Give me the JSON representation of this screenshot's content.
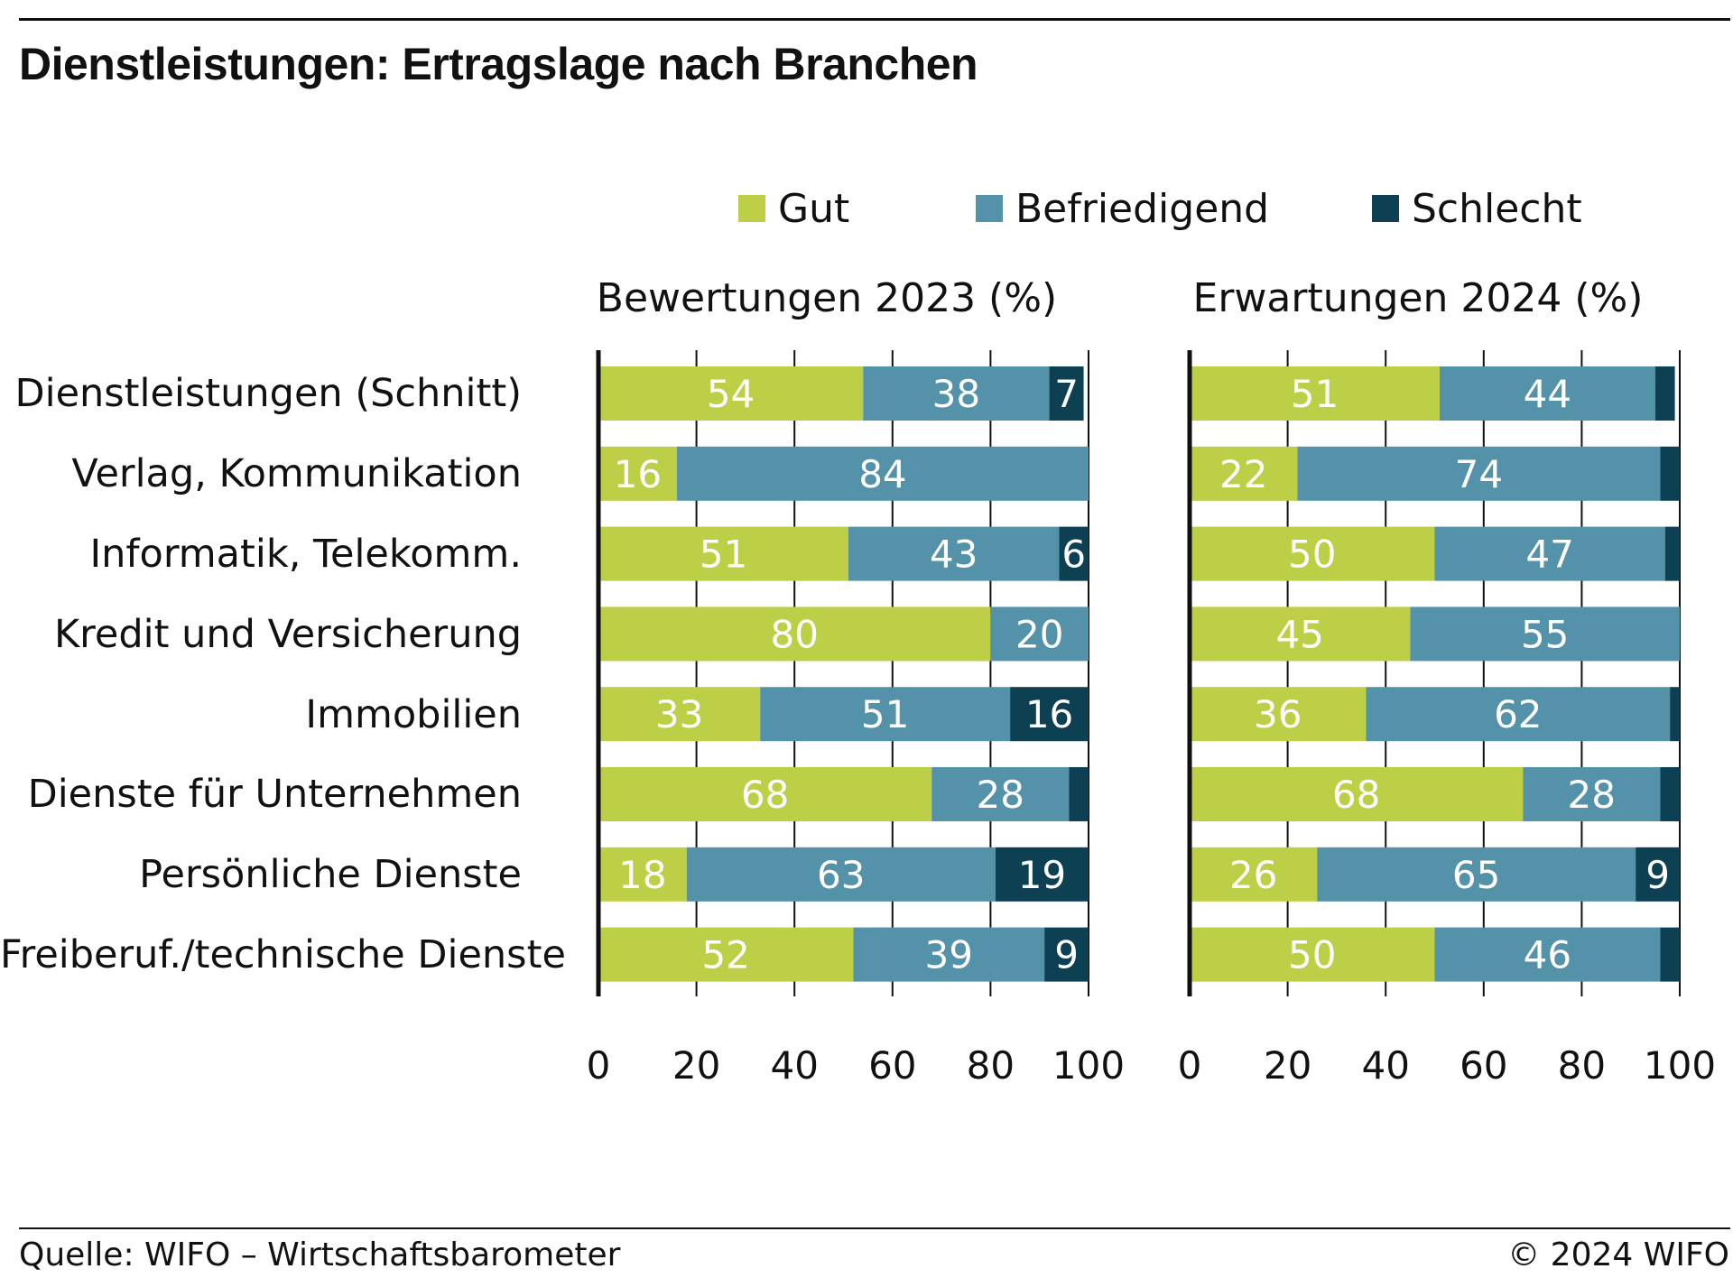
{
  "title": "Dienstleistungen: Ertragslage nach Branchen",
  "footer": {
    "source": "Quelle: WIFO – Wirtschaftsbarometer",
    "copyright": "© 2024 WIFO"
  },
  "colors": {
    "Gut": "#bccf46",
    "Befriedigend": "#5492aa",
    "Schlecht": "#0e4054",
    "axis": "#111111",
    "label": "#ffffff"
  },
  "chart_data": [
    {
      "type": "bar",
      "orientation": "horizontal",
      "stacked": true,
      "title": "Bewertungen 2023 (%)",
      "categories": [
        "Dienstleistungen (Schnitt)",
        "Verlag, Kommunikation",
        "Informatik, Telekomm.",
        "Kredit und Versicherung",
        "Immobilien",
        "Dienste für Unternehmen",
        "Persönliche Dienste",
        "Freiberuf./technische Dienste"
      ],
      "series": [
        {
          "name": "Gut",
          "values": [
            54,
            16,
            51,
            80,
            33,
            68,
            18,
            52
          ]
        },
        {
          "name": "Befriedigend",
          "values": [
            38,
            84,
            43,
            20,
            51,
            28,
            63,
            39
          ]
        },
        {
          "name": "Schlecht",
          "values": [
            7,
            0,
            6,
            0,
            16,
            4,
            19,
            9
          ]
        }
      ],
      "xlim": [
        0,
        100
      ],
      "xticks": [
        "0",
        "20",
        "40",
        "60",
        "80",
        "100"
      ],
      "legend": "top"
    },
    {
      "type": "bar",
      "orientation": "horizontal",
      "stacked": true,
      "title": "Erwartungen 2024 (%)",
      "categories": [
        "Dienstleistungen (Schnitt)",
        "Verlag, Kommunikation",
        "Informatik, Telekomm.",
        "Kredit und Versicherung",
        "Immobilien",
        "Dienste für Unternehmen",
        "Persönliche Dienste",
        "Freiberuf./technische Dienste"
      ],
      "series": [
        {
          "name": "Gut",
          "values": [
            51,
            22,
            50,
            45,
            36,
            68,
            26,
            50
          ]
        },
        {
          "name": "Befriedigend",
          "values": [
            44,
            74,
            47,
            55,
            62,
            28,
            65,
            46
          ]
        },
        {
          "name": "Schlecht",
          "values": [
            4,
            4,
            3,
            0,
            2,
            4,
            9,
            4
          ]
        }
      ],
      "xlim": [
        0,
        100
      ],
      "xticks": [
        "0",
        "20",
        "40",
        "60",
        "80",
        "100"
      ],
      "legend": "top"
    }
  ]
}
